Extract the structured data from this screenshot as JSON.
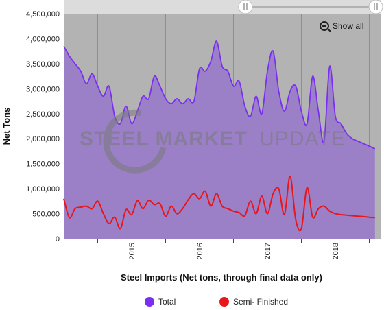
{
  "colors": {
    "total": "#7a2ff0",
    "total_fill": "#9b80c8",
    "semi": "#e8161b",
    "plot_bg": "#b3b3b3",
    "navigator_bg": "#dcdcdc",
    "watermark": "#8a8a8a"
  },
  "toolbar": {
    "show_all_label": "Show all",
    "zoom_icon": "zoom-out-icon"
  },
  "watermark": {
    "text_bold": "STEEL MARKET",
    "text_light": "UPDATE"
  },
  "chart_data": {
    "type": "area",
    "title": "",
    "xlabel": "Steel Imports (Net tons, through final data only)",
    "ylabel": "Net Tons",
    "ylim": [
      0,
      4500000
    ],
    "yticks": [
      0,
      500000,
      1000000,
      1500000,
      2000000,
      2500000,
      3000000,
      3500000,
      4000000,
      4500000
    ],
    "ytick_labels": [
      "0",
      "500,000",
      "1,000,000",
      "1,500,000",
      "2,000,000",
      "2,500,000",
      "3,000,000",
      "3,500,000",
      "4,000,000",
      "4,500,000"
    ],
    "xlim": [
      "2014-07",
      "2019-03"
    ],
    "xticks": [
      "2015-01",
      "2016-01",
      "2017-01",
      "2018-01",
      "2019-01"
    ],
    "xtick_labels": [
      "2015",
      "2016",
      "2017",
      "2018",
      ""
    ],
    "grid": true,
    "legend": "bottom",
    "series": [
      {
        "name": "Total",
        "x": [
          "2014-07",
          "2014-08",
          "2014-09",
          "2014-10",
          "2014-11",
          "2014-12",
          "2015-01",
          "2015-02",
          "2015-03",
          "2015-04",
          "2015-05",
          "2015-06",
          "2015-07",
          "2015-08",
          "2015-09",
          "2015-10",
          "2015-11",
          "2015-12",
          "2016-01",
          "2016-02",
          "2016-03",
          "2016-04",
          "2016-05",
          "2016-06",
          "2016-07",
          "2016-08",
          "2016-09",
          "2016-10",
          "2016-11",
          "2016-12",
          "2017-01",
          "2017-02",
          "2017-03",
          "2017-04",
          "2017-05",
          "2017-06",
          "2017-07",
          "2017-08",
          "2017-09",
          "2017-10",
          "2017-11",
          "2017-12",
          "2018-01",
          "2018-02",
          "2018-03",
          "2018-04",
          "2018-05",
          "2018-06",
          "2018-07",
          "2018-08",
          "2018-09",
          "2018-10",
          "2018-11",
          "2018-12",
          "2019-01",
          "2019-02"
        ],
        "values": [
          3850000,
          3650000,
          3500000,
          3350000,
          3100000,
          3300000,
          3050000,
          2850000,
          3050000,
          2450000,
          2300000,
          2650000,
          2300000,
          2550000,
          2850000,
          2800000,
          3250000,
          3050000,
          2800000,
          2700000,
          2800000,
          2700000,
          2800000,
          2750000,
          3400000,
          3350000,
          3550000,
          3950000,
          3450000,
          3350000,
          3050000,
          3150000,
          2650000,
          2450000,
          2850000,
          2500000,
          3350000,
          3750000,
          2950000,
          2550000,
          2950000,
          3050000,
          2550000,
          2300000,
          3250000,
          2550000,
          1950000,
          3450000,
          2450000,
          2300000,
          2100000,
          2000000,
          1950000,
          1900000,
          1850000,
          1800000
        ]
      },
      {
        "name": "Semi- Finished",
        "x": [
          "2014-07",
          "2014-08",
          "2014-09",
          "2014-10",
          "2014-11",
          "2014-12",
          "2015-01",
          "2015-02",
          "2015-03",
          "2015-04",
          "2015-05",
          "2015-06",
          "2015-07",
          "2015-08",
          "2015-09",
          "2015-10",
          "2015-11",
          "2015-12",
          "2016-01",
          "2016-02",
          "2016-03",
          "2016-04",
          "2016-05",
          "2016-06",
          "2016-07",
          "2016-08",
          "2016-09",
          "2016-10",
          "2016-11",
          "2016-12",
          "2017-01",
          "2017-02",
          "2017-03",
          "2017-04",
          "2017-05",
          "2017-06",
          "2017-07",
          "2017-08",
          "2017-09",
          "2017-10",
          "2017-11",
          "2017-12",
          "2018-01",
          "2018-02",
          "2018-03",
          "2018-04",
          "2018-05",
          "2018-06",
          "2018-07",
          "2018-08",
          "2018-09",
          "2018-10",
          "2018-11",
          "2018-12",
          "2019-01",
          "2019-02"
        ],
        "values": [
          800000,
          420000,
          600000,
          630000,
          650000,
          600000,
          750000,
          500000,
          300000,
          430000,
          200000,
          580000,
          480000,
          760000,
          600000,
          770000,
          680000,
          700000,
          450000,
          650000,
          500000,
          600000,
          780000,
          900000,
          800000,
          950000,
          650000,
          900000,
          650000,
          600000,
          550000,
          520000,
          460000,
          750000,
          500000,
          850000,
          500000,
          900000,
          1000000,
          480000,
          1250000,
          380000,
          200000,
          1020000,
          430000,
          600000,
          650000,
          550000,
          500000,
          480000,
          470000,
          460000,
          450000,
          440000,
          430000,
          420000
        ]
      }
    ]
  }
}
